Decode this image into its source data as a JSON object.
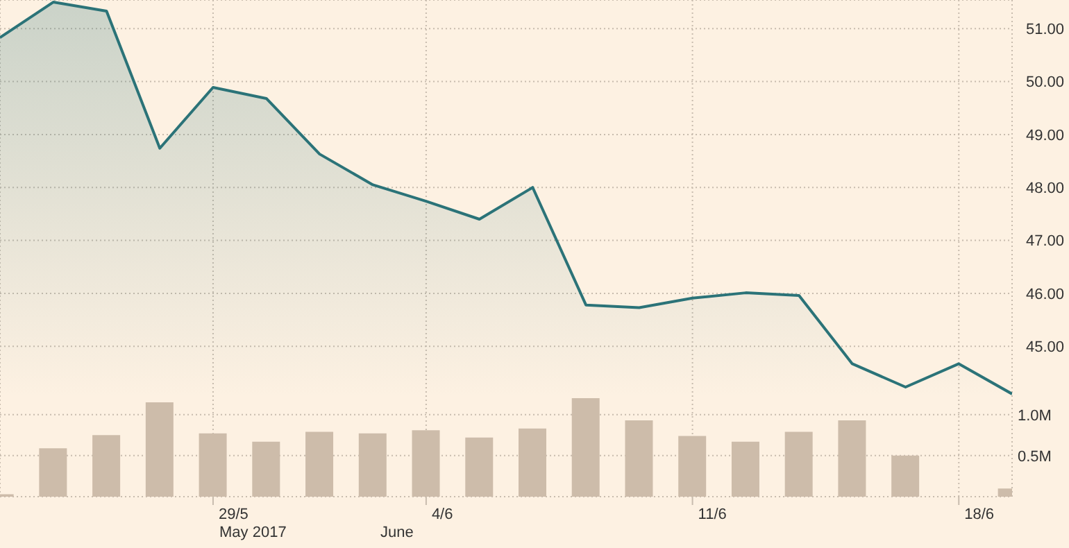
{
  "chart_data": {
    "type": "area",
    "categories": [
      null,
      null,
      null,
      null,
      "29/5",
      null,
      null,
      null,
      "4/6",
      null,
      null,
      null,
      null,
      "11/6",
      null,
      null,
      null,
      null,
      "18/6",
      null
    ],
    "series": [
      {
        "color": "#2b7378",
        "values": [
          50.83,
          51.5,
          51.33,
          48.74,
          49.89,
          49.68,
          48.63,
          48.05,
          47.74,
          47.4,
          48.0,
          45.78,
          45.73,
          45.91,
          46.01,
          45.96,
          44.67,
          44.23,
          44.67,
          44.1
        ]
      },
      {
        "type": "bar",
        "axis": "y2",
        "color": "#cdbcaa",
        "values": [
          0.03,
          0.59,
          0.75,
          1.15,
          0.77,
          0.67,
          0.79,
          0.77,
          0.81,
          0.72,
          0.83,
          1.2,
          0.93,
          0.74,
          0.67,
          0.79,
          0.93,
          0.5,
          null,
          0.1
        ]
      }
    ],
    "ylim": [
      42.16,
      51.54
    ],
    "yticks": [
      {
        "value": 45,
        "label": "45.00"
      },
      {
        "value": 46,
        "label": "46.00"
      },
      {
        "value": 47,
        "label": "47.00"
      },
      {
        "value": 48,
        "label": "48.00"
      },
      {
        "value": 49,
        "label": "49.00"
      },
      {
        "value": 50,
        "label": "50.00"
      },
      {
        "value": 51,
        "label": "51.00"
      }
    ],
    "y2lim": [
      0,
      6.05
    ],
    "y2ticks": [
      {
        "value": 0.5,
        "label": "0.5M"
      },
      {
        "value": 1,
        "label": "1.0M"
      }
    ],
    "grid": true,
    "annotations": [
      "May 2017",
      "June"
    ]
  }
}
